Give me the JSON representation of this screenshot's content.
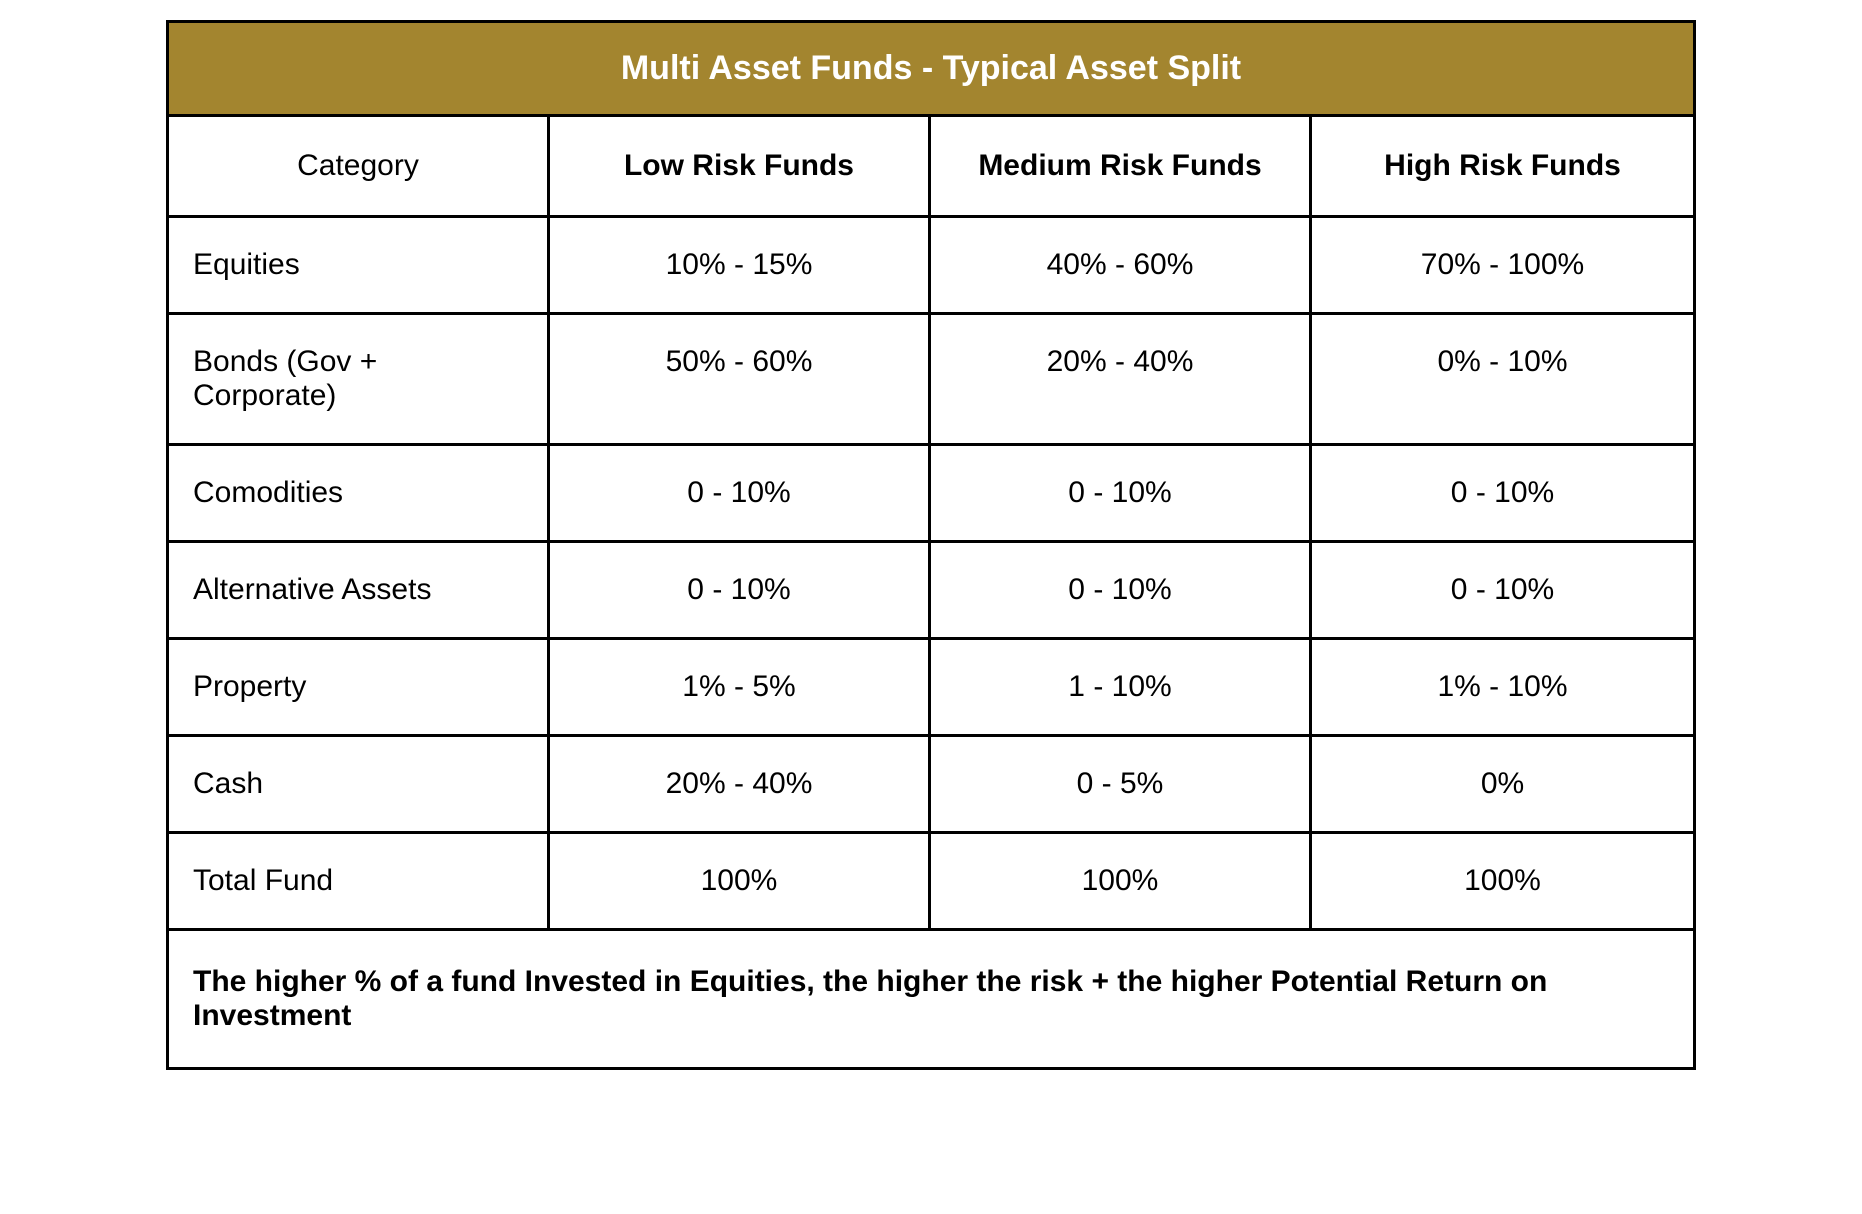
{
  "table": {
    "type": "table",
    "title": "Multi Asset Funds - Typical Asset Split",
    "title_bg": "#a3852f",
    "title_color": "#ffffff",
    "title_fontsize": 34,
    "title_fontweight": "bold",
    "border_color": "#000000",
    "border_width": 3,
    "background_color": "#ffffff",
    "cell_fontsize": 30,
    "header_fontweight_category": "normal",
    "header_fontweight_columns": "bold",
    "columns": [
      {
        "key": "category",
        "label": "Category",
        "width_pct": 25,
        "align": "left"
      },
      {
        "key": "low",
        "label": "Low Risk Funds",
        "width_pct": 25,
        "align": "center"
      },
      {
        "key": "medium",
        "label": "Medium Risk Funds",
        "width_pct": 25,
        "align": "center"
      },
      {
        "key": "high",
        "label": "High Risk Funds",
        "width_pct": 25,
        "align": "center"
      }
    ],
    "rows": [
      {
        "category": "Equities",
        "low": "10% - 15%",
        "medium": "40% - 60%",
        "high": "70% - 100%"
      },
      {
        "category": "Bonds (Gov + Corporate)",
        "low": "50% - 60%",
        "medium": "20% - 40%",
        "high": "0% - 10%"
      },
      {
        "category": "Comodities",
        "low": "0 - 10%",
        "medium": "0 - 10%",
        "high": "0 - 10%"
      },
      {
        "category": "Alternative Assets",
        "low": "0 - 10%",
        "medium": "0 - 10%",
        "high": "0 - 10%"
      },
      {
        "category": "Property",
        "low": "1% - 5%",
        "medium": "1 - 10%",
        "high": "1% - 10%"
      },
      {
        "category": "Cash",
        "low": "20% - 40%",
        "medium": "0 - 5%",
        "high": "0%"
      },
      {
        "category": "Total Fund",
        "low": "100%",
        "medium": "100%",
        "high": "100%"
      }
    ],
    "footer": "The higher % of a fund Invested in Equities, the higher the risk + the higher Potential Return on Investment",
    "footer_fontweight": "bold",
    "footer_fontsize": 30
  }
}
